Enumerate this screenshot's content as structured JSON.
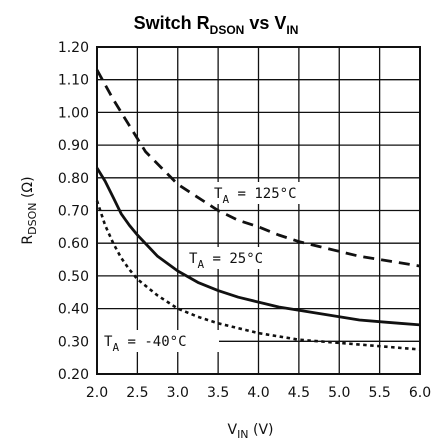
{
  "chart_data": {
    "type": "line",
    "title": {
      "prefix": "Switch R",
      "prefix_sub": "DSON",
      "mid": " vs V",
      "mid_sub": "IN"
    },
    "xlabel": {
      "main": "V",
      "sub": "IN",
      "unit": " (V)"
    },
    "ylabel": {
      "main": "R",
      "sub": "DSON",
      "unit": " (Ω)"
    },
    "xlim": [
      2.0,
      6.0
    ],
    "ylim": [
      0.2,
      1.2
    ],
    "x_ticks": [
      "2.0",
      "2.5",
      "3.0",
      "3.5",
      "4.0",
      "4.5",
      "5.0",
      "5.5",
      "6.0"
    ],
    "y_ticks": [
      "0.20",
      "0.30",
      "0.40",
      "0.50",
      "0.60",
      "0.70",
      "0.80",
      "0.90",
      "1.00",
      "1.10",
      "1.20"
    ],
    "grid": true,
    "series": [
      {
        "name": "T_A = 125°C",
        "label_main": "T",
        "label_sub": "A",
        "label_rest": " = 125°C",
        "style": "dashed",
        "color": "#111111",
        "x": [
          2.0,
          2.2,
          2.4,
          2.6,
          2.8,
          3.0,
          3.25,
          3.5,
          3.75,
          4.0,
          4.25,
          4.5,
          4.75,
          5.0,
          5.25,
          5.5,
          5.75,
          6.0
        ],
        "y": [
          1.13,
          1.04,
          0.96,
          0.88,
          0.83,
          0.78,
          0.74,
          0.7,
          0.67,
          0.65,
          0.625,
          0.605,
          0.59,
          0.575,
          0.56,
          0.55,
          0.54,
          0.53
        ]
      },
      {
        "name": "T_A = 25°C",
        "label_main": "T",
        "label_sub": "A",
        "label_rest": " = 25°C",
        "style": "solid",
        "color": "#111111",
        "x": [
          2.0,
          2.1,
          2.2,
          2.3,
          2.4,
          2.5,
          2.75,
          3.0,
          3.25,
          3.5,
          3.75,
          4.0,
          4.25,
          4.5,
          4.75,
          5.0,
          5.25,
          5.5,
          5.75,
          6.0
        ],
        "y": [
          0.83,
          0.79,
          0.74,
          0.69,
          0.655,
          0.625,
          0.56,
          0.515,
          0.48,
          0.455,
          0.435,
          0.42,
          0.405,
          0.395,
          0.385,
          0.375,
          0.365,
          0.36,
          0.355,
          0.35
        ]
      },
      {
        "name": "T_A = -40°C",
        "label_main": "T",
        "label_sub": "A",
        "label_rest": " = -40°C",
        "style": "dotted",
        "color": "#111111",
        "x": [
          2.0,
          2.1,
          2.2,
          2.3,
          2.4,
          2.5,
          2.75,
          3.0,
          3.25,
          3.5,
          3.75,
          4.0,
          4.25,
          4.5,
          4.75,
          5.0,
          5.5,
          6.0
        ],
        "y": [
          0.73,
          0.655,
          0.6,
          0.555,
          0.52,
          0.49,
          0.44,
          0.4,
          0.375,
          0.355,
          0.34,
          0.325,
          0.315,
          0.305,
          0.3,
          0.295,
          0.285,
          0.275
        ]
      }
    ]
  }
}
